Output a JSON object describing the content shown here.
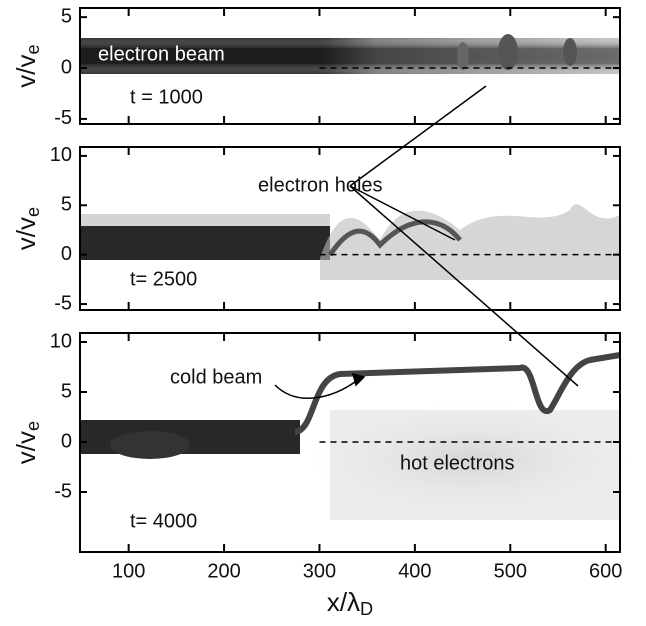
{
  "chart_data": [
    {
      "type": "phase-space",
      "ylabel": {
        "base": "v/v",
        "subscript": "e"
      },
      "xlim": [
        49,
        615
      ],
      "ylim": [
        -5.5,
        5.9
      ],
      "yticks": [
        5,
        0,
        -5
      ],
      "annotations": [
        "electron beam",
        "t = 1000"
      ]
    },
    {
      "type": "phase-space",
      "ylabel": {
        "base": "v/v",
        "subscript": "e"
      },
      "xlim": [
        49,
        615
      ],
      "ylim": [
        -5.6,
        10.9
      ],
      "yticks": [
        10,
        5,
        0,
        -5
      ],
      "annotations": [
        "electron holes",
        "t= 2500"
      ]
    },
    {
      "type": "phase-space",
      "ylabel": {
        "base": "v/v",
        "subscript": "e"
      },
      "xlabel": {
        "base": "x/λ",
        "subscript": "D"
      },
      "xlim": [
        49,
        615
      ],
      "ylim": [
        -11,
        10.9
      ],
      "yticks": [
        10,
        5,
        0,
        -5
      ],
      "xticks": [
        100,
        200,
        300,
        400,
        500,
        600
      ],
      "annotations": [
        "cold beam",
        "hot electrons",
        "t= 4000"
      ]
    }
  ]
}
